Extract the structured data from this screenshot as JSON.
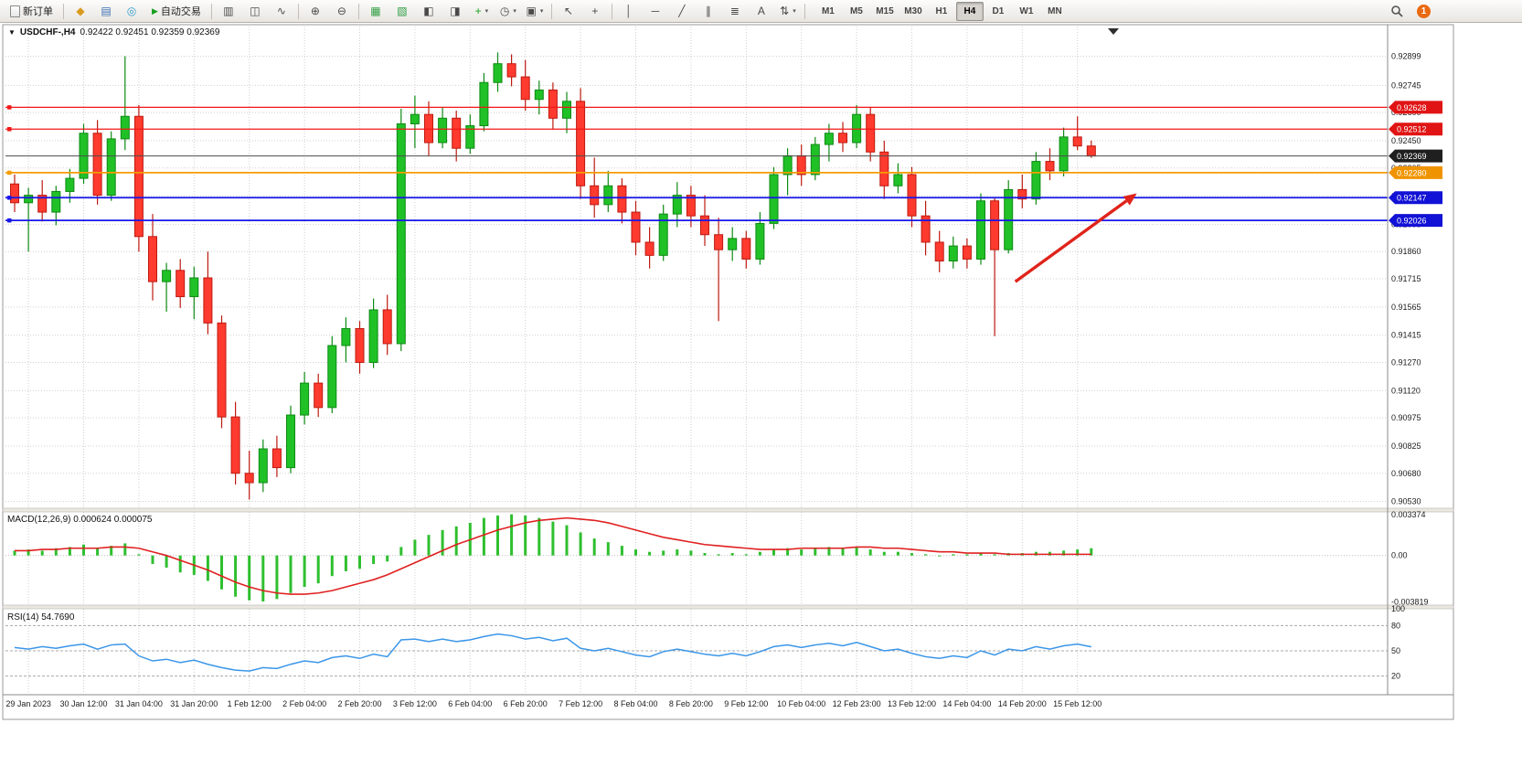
{
  "toolbar": {
    "new_order_label": "新订单",
    "autotrading_label": "自动交易",
    "notification_count": "1",
    "left_icons": [
      {
        "name": "metaeditor-icon",
        "glyph": "◆",
        "color": "#d99a1f"
      },
      {
        "name": "market-watch-icon",
        "glyph": "▤",
        "color": "#3a6fb5"
      },
      {
        "name": "navigator-icon",
        "glyph": "◎",
        "color": "#2e9cca"
      }
    ],
    "tool_icons": [
      {
        "name": "chart-bars-icon",
        "glyph": "▥"
      },
      {
        "name": "chart-candles-icon",
        "glyph": "◫"
      },
      {
        "name": "chart-line-icon",
        "glyph": "∿"
      },
      {
        "sep": true
      },
      {
        "name": "zoom-in-icon",
        "glyph": "⊕"
      },
      {
        "name": "zoom-out-icon",
        "glyph": "⊖"
      },
      {
        "sep": true
      },
      {
        "name": "tile-windows-icon",
        "glyph": "▦",
        "color": "#2f9e44"
      },
      {
        "name": "cascade-windows-icon",
        "glyph": "▧",
        "color": "#2f9e44"
      },
      {
        "name": "chart-back-icon",
        "glyph": "◧"
      },
      {
        "name": "chart-forward-icon",
        "glyph": "◨"
      },
      {
        "name": "add-indicator-button",
        "glyph": "+",
        "color": "#18a018",
        "dropdown": true
      },
      {
        "name": "periods-button",
        "glyph": "◷",
        "dropdown": true
      },
      {
        "name": "templates-button",
        "glyph": "▣",
        "dropdown": true
      },
      {
        "sep": true
      },
      {
        "name": "cursor-icon",
        "glyph": "↖"
      },
      {
        "name": "crosshair-icon",
        "glyph": "+"
      },
      {
        "sep": true
      },
      {
        "name": "vertical-line-icon",
        "glyph": "│"
      },
      {
        "name": "horizontal-line-icon",
        "glyph": "─"
      },
      {
        "name": "trendline-icon",
        "glyph": "╱"
      },
      {
        "name": "channel-icon",
        "glyph": "∥"
      },
      {
        "name": "fibonacci-icon",
        "glyph": "≣"
      },
      {
        "name": "text-icon",
        "glyph": "A"
      },
      {
        "name": "arrows-button",
        "glyph": "⇅",
        "dropdown": true
      },
      {
        "sep": true
      }
    ],
    "timeframes": [
      {
        "label": "M1"
      },
      {
        "label": "M5"
      },
      {
        "label": "M15"
      },
      {
        "label": "M30"
      },
      {
        "label": "H1"
      },
      {
        "label": "H4",
        "active": true
      },
      {
        "label": "D1"
      },
      {
        "label": "W1"
      },
      {
        "label": "MN"
      }
    ]
  },
  "chart": {
    "title": "USDCHF-,H4",
    "quote": "0.92422 0.92451 0.92359 0.92369"
  },
  "chart_data": [
    {
      "type": "candlestick",
      "title": "USDCHF-,H4",
      "symbol": "USDCHF",
      "timeframe": "H4",
      "ohlc_current": "0.92422 0.92451 0.92359 0.92369",
      "current_price": 0.92369,
      "ylim": [
        0.90494,
        0.93058
      ],
      "y_axis_labels": [
        "0.92899",
        "0.92745",
        "0.92600",
        "0.92450",
        "0.92305",
        "0.92155",
        "0.92005",
        "0.91860",
        "0.91715",
        "0.91565",
        "0.91415",
        "0.91270",
        "0.91120",
        "0.90975",
        "0.90825",
        "0.90680",
        "0.90530"
      ],
      "x_labels": [
        "29 Jan 2023",
        "30 Jan 12:00",
        "31 Jan 04:00",
        "31 Jan 20:00",
        "1 Feb 12:00",
        "2 Feb 04:00",
        "2 Feb 20:00",
        "3 Feb 12:00",
        "6 Feb 04:00",
        "6 Feb 20:00",
        "7 Feb 12:00",
        "8 Feb 04:00",
        "8 Feb 20:00",
        "9 Feb 12:00",
        "10 Feb 04:00",
        "12 Feb 23:00",
        "13 Feb 12:00",
        "14 Feb 04:00",
        "14 Feb 20:00",
        "15 Feb 12:00"
      ],
      "x_label_every": 4,
      "ohlc": [
        [
          0.9222,
          0.9227,
          0.9207,
          0.9212
        ],
        [
          0.9212,
          0.922,
          0.9186,
          0.9216
        ],
        [
          0.9216,
          0.9224,
          0.9202,
          0.9207
        ],
        [
          0.9207,
          0.9221,
          0.92,
          0.9218
        ],
        [
          0.9218,
          0.923,
          0.9212,
          0.9225
        ],
        [
          0.9225,
          0.9254,
          0.9222,
          0.9249
        ],
        [
          0.9249,
          0.9256,
          0.9211,
          0.9216
        ],
        [
          0.9216,
          0.925,
          0.9213,
          0.9246
        ],
        [
          0.9246,
          0.929,
          0.924,
          0.9258
        ],
        [
          0.9258,
          0.9264,
          0.9186,
          0.9194
        ],
        [
          0.9194,
          0.9206,
          0.916,
          0.917
        ],
        [
          0.917,
          0.918,
          0.9154,
          0.9176
        ],
        [
          0.9176,
          0.9182,
          0.9156,
          0.9162
        ],
        [
          0.9162,
          0.9178,
          0.915,
          0.9172
        ],
        [
          0.9172,
          0.9186,
          0.9142,
          0.9148
        ],
        [
          0.9148,
          0.9152,
          0.9092,
          0.9098
        ],
        [
          0.9098,
          0.9106,
          0.9062,
          0.9068
        ],
        [
          0.9068,
          0.908,
          0.9054,
          0.9063
        ],
        [
          0.9063,
          0.9086,
          0.9058,
          0.9081
        ],
        [
          0.9081,
          0.9088,
          0.9066,
          0.9071
        ],
        [
          0.9071,
          0.9104,
          0.9068,
          0.9099
        ],
        [
          0.9099,
          0.9122,
          0.9094,
          0.9116
        ],
        [
          0.9116,
          0.9121,
          0.9098,
          0.9103
        ],
        [
          0.9103,
          0.9141,
          0.91,
          0.9136
        ],
        [
          0.9136,
          0.9151,
          0.9127,
          0.9145
        ],
        [
          0.9145,
          0.9149,
          0.9121,
          0.9127
        ],
        [
          0.9127,
          0.9161,
          0.9124,
          0.9155
        ],
        [
          0.9155,
          0.9163,
          0.9131,
          0.9137
        ],
        [
          0.9137,
          0.9262,
          0.9133,
          0.9254
        ],
        [
          0.9254,
          0.9269,
          0.9241,
          0.9259
        ],
        [
          0.9259,
          0.9266,
          0.9237,
          0.9244
        ],
        [
          0.9244,
          0.9263,
          0.9241,
          0.9257
        ],
        [
          0.9257,
          0.9261,
          0.9234,
          0.9241
        ],
        [
          0.9241,
          0.9259,
          0.9238,
          0.9253
        ],
        [
          0.9253,
          0.9281,
          0.925,
          0.9276
        ],
        [
          0.9276,
          0.9292,
          0.9271,
          0.9286
        ],
        [
          0.9286,
          0.9291,
          0.9274,
          0.9279
        ],
        [
          0.9279,
          0.9288,
          0.9261,
          0.9267
        ],
        [
          0.9267,
          0.9277,
          0.9259,
          0.9272
        ],
        [
          0.9272,
          0.9276,
          0.9251,
          0.9257
        ],
        [
          0.9257,
          0.9271,
          0.9249,
          0.9266
        ],
        [
          0.9266,
          0.9273,
          0.9214,
          0.9221
        ],
        [
          0.9221,
          0.9236,
          0.9204,
          0.9211
        ],
        [
          0.9211,
          0.9229,
          0.9207,
          0.9221
        ],
        [
          0.9221,
          0.9225,
          0.9201,
          0.9207
        ],
        [
          0.9207,
          0.9213,
          0.9184,
          0.9191
        ],
        [
          0.9191,
          0.9199,
          0.9177,
          0.9184
        ],
        [
          0.9184,
          0.9211,
          0.9181,
          0.9206
        ],
        [
          0.9206,
          0.9223,
          0.9199,
          0.9216
        ],
        [
          0.9216,
          0.9221,
          0.9199,
          0.9205
        ],
        [
          0.9205,
          0.9216,
          0.9189,
          0.9195
        ],
        [
          0.9195,
          0.9204,
          0.9149,
          0.9187
        ],
        [
          0.9187,
          0.9199,
          0.9181,
          0.9193
        ],
        [
          0.9193,
          0.9197,
          0.9177,
          0.9182
        ],
        [
          0.9182,
          0.9207,
          0.9179,
          0.9201
        ],
        [
          0.9201,
          0.9231,
          0.9198,
          0.9227
        ],
        [
          0.9227,
          0.9241,
          0.9216,
          0.9237
        ],
        [
          0.9237,
          0.9243,
          0.9221,
          0.9227
        ],
        [
          0.9227,
          0.9247,
          0.9224,
          0.9243
        ],
        [
          0.9243,
          0.9254,
          0.9234,
          0.9249
        ],
        [
          0.9249,
          0.9255,
          0.9239,
          0.9244
        ],
        [
          0.9244,
          0.9264,
          0.9241,
          0.9259
        ],
        [
          0.9259,
          0.9263,
          0.9234,
          0.9239
        ],
        [
          0.9239,
          0.9245,
          0.9214,
          0.9221
        ],
        [
          0.9221,
          0.9233,
          0.9217,
          0.9227
        ],
        [
          0.9227,
          0.9231,
          0.9199,
          0.9205
        ],
        [
          0.9205,
          0.9213,
          0.9184,
          0.9191
        ],
        [
          0.9191,
          0.9197,
          0.9175,
          0.9181
        ],
        [
          0.9181,
          0.9194,
          0.9177,
          0.9189
        ],
        [
          0.9189,
          0.9193,
          0.9177,
          0.9182
        ],
        [
          0.9182,
          0.9217,
          0.9179,
          0.9213
        ],
        [
          0.9213,
          0.9215,
          0.9141,
          0.9187
        ],
        [
          0.9187,
          0.9224,
          0.9185,
          0.9219
        ],
        [
          0.9219,
          0.9227,
          0.9209,
          0.9214
        ],
        [
          0.9214,
          0.9239,
          0.9211,
          0.9234
        ],
        [
          0.9234,
          0.9241,
          0.9224,
          0.9229
        ],
        [
          0.9229,
          0.9252,
          0.9226,
          0.9247
        ],
        [
          0.9247,
          0.9258,
          0.924,
          0.92422
        ],
        [
          0.92422,
          0.92451,
          0.92359,
          0.92369
        ]
      ],
      "hlines": [
        {
          "name": "resistance-line-1",
          "price": 0.92628,
          "label": "0.92628",
          "color": "#f21616",
          "width": 1.2,
          "badge": "#e01414",
          "handle": true
        },
        {
          "name": "resistance-line-2",
          "price": 0.92512,
          "label": "0.92512",
          "color": "#f21616",
          "width": 1.2,
          "badge": "#e01414",
          "handle": true
        },
        {
          "name": "current-price-line",
          "price": 0.92369,
          "label": "0.92369",
          "color": "#4d4d4d",
          "width": 1,
          "badge": "#1f1f1f",
          "handle": false
        },
        {
          "name": "pivot-line",
          "price": 0.9228,
          "label": "0.92280",
          "color": "#f59b00",
          "width": 1.8,
          "badge": "#ef9400",
          "handle": true
        },
        {
          "name": "support-line-1",
          "price": 0.92147,
          "label": "0.92147",
          "color": "#1717e8",
          "width": 1.8,
          "badge": "#1212d6",
          "handle": true
        },
        {
          "name": "support-line-2",
          "price": 0.92026,
          "label": "0.92026",
          "color": "#1717e8",
          "width": 1.8,
          "badge": "#1212d6",
          "handle": true
        }
      ],
      "annotations": [
        {
          "type": "arrow",
          "from_index": 72.5,
          "from_price": 0.917,
          "to_index": 81.3,
          "to_price": 0.9217,
          "color": "#df241b"
        }
      ]
    },
    {
      "type": "bar",
      "name": "MACD(12,26,9)",
      "label": "MACD(12,26,9) 0.000624 0.000075",
      "ylim": [
        -0.003819,
        0.003374
      ],
      "value_labels": [
        "0.003374",
        "0.00",
        "-0.003819"
      ],
      "bar_color": "#2fbf2f",
      "signal_color": "#e02020",
      "values": [
        0.0004,
        0.0005,
        0.0004,
        0.0006,
        0.0007,
        0.0009,
        0.0006,
        0.0008,
        0.001,
        0.0001,
        -0.0007,
        -0.001,
        -0.0014,
        -0.0016,
        -0.0021,
        -0.0028,
        -0.0034,
        -0.0037,
        -0.0038,
        -0.0036,
        -0.0031,
        -0.0026,
        -0.0023,
        -0.0017,
        -0.0013,
        -0.0011,
        -0.0007,
        -0.0005,
        0.0007,
        0.0013,
        0.0017,
        0.0021,
        0.0024,
        0.0027,
        0.0031,
        0.0033,
        0.0034,
        0.0033,
        0.0031,
        0.0028,
        0.0025,
        0.0019,
        0.0014,
        0.0011,
        0.0008,
        0.0005,
        0.0003,
        0.0004,
        0.0005,
        0.0004,
        0.0002,
        0.0001,
        0.0002,
        0.0001,
        0.0003,
        0.0005,
        0.0006,
        0.0005,
        0.0006,
        0.0007,
        0.0006,
        0.0007,
        0.0005,
        0.0003,
        0.0003,
        0.0002,
        0.0001,
        0.0,
        0.0001,
        0.0001,
        0.0002,
        0.0001,
        0.0002,
        0.0002,
        0.0003,
        0.0003,
        0.0004,
        0.0005,
        0.0006
      ],
      "signal": [
        0.0004,
        0.0004,
        0.0005,
        0.0005,
        0.0006,
        0.0006,
        0.0006,
        0.0007,
        0.0007,
        0.0006,
        0.0003,
        0.0,
        -0.0004,
        -0.0008,
        -0.0012,
        -0.0017,
        -0.0022,
        -0.0026,
        -0.0029,
        -0.0031,
        -0.0032,
        -0.0032,
        -0.0031,
        -0.0029,
        -0.0026,
        -0.0023,
        -0.002,
        -0.0016,
        -0.0011,
        -0.0006,
        -0.0001,
        0.0004,
        0.0009,
        0.0013,
        0.0017,
        0.0021,
        0.0024,
        0.0027,
        0.0029,
        0.003,
        0.0031,
        0.003,
        0.0029,
        0.0027,
        0.0024,
        0.0021,
        0.0018,
        0.0015,
        0.0013,
        0.0011,
        0.0009,
        0.0008,
        0.0007,
        0.0006,
        0.0005,
        0.0005,
        0.0005,
        0.0006,
        0.0006,
        0.0006,
        0.0006,
        0.0007,
        0.0007,
        0.0006,
        0.0006,
        0.0005,
        0.0004,
        0.0003,
        0.0003,
        0.0002,
        0.0002,
        0.0002,
        0.0001,
        0.0001,
        0.0001,
        0.0001,
        0.0001,
        0.0001,
        0.0001
      ]
    },
    {
      "type": "line",
      "name": "RSI(14)",
      "label": "RSI(14) 54.7690",
      "ylim": [
        0,
        100
      ],
      "levels": [
        20,
        50,
        80
      ],
      "level_labels": [
        "100",
        "80",
        "50",
        "20"
      ],
      "line_color": "#3b96e8",
      "values": [
        54,
        52,
        55,
        53,
        56,
        58,
        52,
        57,
        58,
        44,
        38,
        40,
        36,
        39,
        34,
        30,
        27,
        26,
        30,
        29,
        34,
        38,
        36,
        42,
        44,
        41,
        46,
        43,
        63,
        64,
        61,
        64,
        61,
        63,
        67,
        70,
        68,
        64,
        66,
        62,
        65,
        53,
        50,
        53,
        49,
        45,
        43,
        49,
        52,
        49,
        46,
        44,
        47,
        44,
        49,
        55,
        57,
        54,
        57,
        59,
        56,
        60,
        55,
        50,
        52,
        47,
        43,
        41,
        44,
        42,
        50,
        45,
        52,
        50,
        55,
        52,
        56,
        58,
        54.77
      ]
    }
  ]
}
